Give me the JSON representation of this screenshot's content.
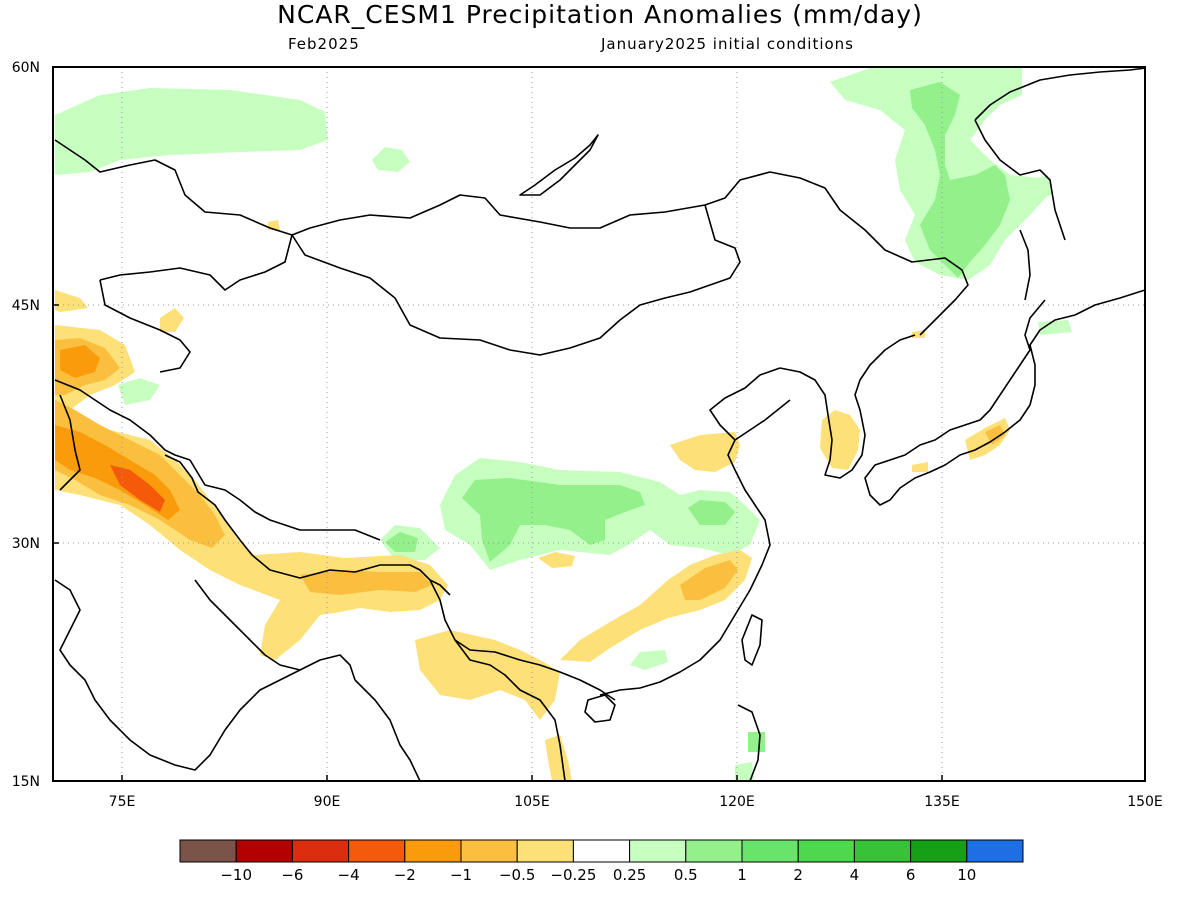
{
  "title": "NCAR_CESM1 Precipitation Anomalies (mm/day)",
  "subtitle_left": "Feb2025",
  "subtitle_right": "January2025 initial conditions",
  "lat_labels": [
    "60N",
    "45N",
    "30N",
    "15N"
  ],
  "lon_labels": [
    "75E",
    "90E",
    "105E",
    "120E",
    "135E",
    "150E"
  ],
  "colorbar": {
    "colors": [
      "#7a5449",
      "#b50000",
      "#dc2e0f",
      "#f55a0a",
      "#f99b0a",
      "#fbbf3f",
      "#fde078",
      "#ffffff",
      "#c6ffc0",
      "#93f08a",
      "#6ae36a",
      "#4dd94d",
      "#37c237",
      "#15a015",
      "#1e6ee6"
    ],
    "labels": [
      "−10",
      "−6",
      "−4",
      "−2",
      "−1",
      "−0.5",
      "−0.25",
      "0.25",
      "0.5",
      "1",
      "2",
      "4",
      "6",
      "10"
    ]
  },
  "colors": {
    "light_yellow": "#fde078",
    "yellow_orange": "#fbbf3f",
    "orange": "#f99b0a",
    "dark_orange": "#f55a0a",
    "light_green": "#c6ffc0",
    "green": "#93f08a",
    "mid_green": "#6ae36a"
  }
}
